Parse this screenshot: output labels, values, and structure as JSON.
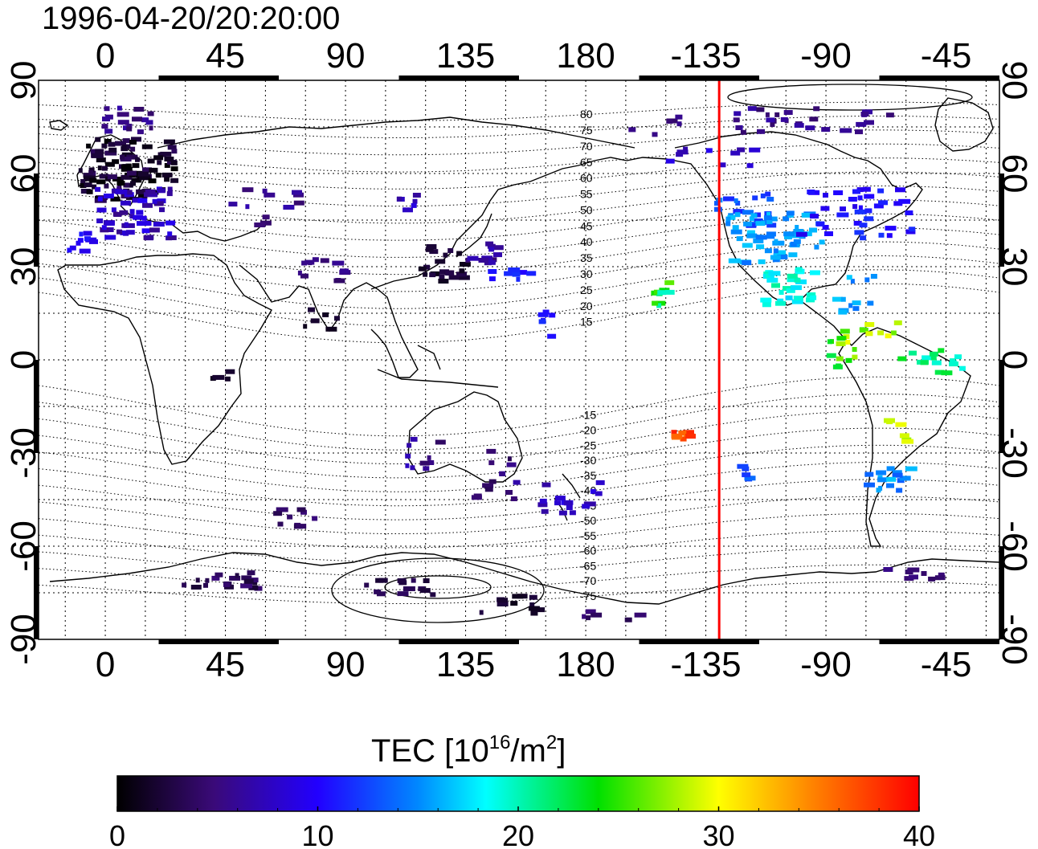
{
  "timestamp": "1996-04-20/20:20:00",
  "map": {
    "lon_ticks": [
      "0",
      "45",
      "90",
      "135",
      "180",
      "-135",
      "-90",
      "-45"
    ],
    "lon_tick_values": [
      0,
      45,
      90,
      135,
      180,
      225,
      270,
      315
    ],
    "lat_ticks": [
      "90",
      "60",
      "30",
      "0",
      "-30",
      "-60",
      "-90"
    ],
    "lat_tick_values": [
      90,
      60,
      30,
      0,
      -30,
      -60,
      -90
    ],
    "lon_range": [
      -25,
      335
    ],
    "lat_range": [
      -90,
      90
    ],
    "terminator_lon": -130,
    "contour_labels": [
      "80",
      "75",
      "70",
      "65",
      "60",
      "55",
      "50",
      "45",
      "40",
      "35",
      "30",
      "25",
      "20",
      "15",
      "-15",
      "-20",
      "-25",
      "-30",
      "-35",
      "-40",
      "-45",
      "-50",
      "-55",
      "-60",
      "-65",
      "-70",
      "-75"
    ],
    "colors": {
      "terminator": "#ff0000",
      "coastline": "#000000",
      "grid": "#000000"
    }
  },
  "colorbar": {
    "title_prefix": "TEC  [10",
    "title_sup1": "16",
    "title_mid": "/m",
    "title_sup2": "2",
    "title_suffix": "]",
    "ticks": [
      "0",
      "10",
      "20",
      "30",
      "40"
    ],
    "tick_values": [
      0,
      10,
      20,
      30,
      40
    ],
    "range": [
      0,
      40
    ]
  }
}
